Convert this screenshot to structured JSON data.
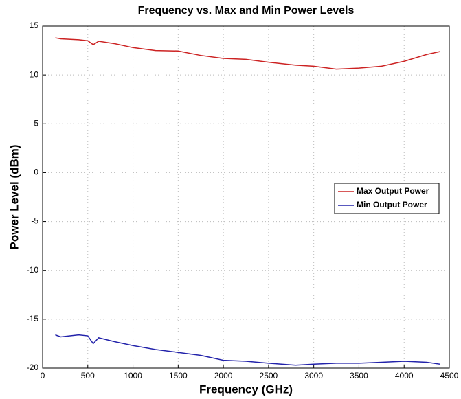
{
  "chart_data": {
    "type": "line",
    "title": "Frequency vs. Max and Min Power Levels",
    "x_label": "Frequency (GHz)",
    "y_label": "Power Level (dBm)",
    "x": [
      140,
      200,
      400,
      500,
      560,
      620,
      800,
      1000,
      1250,
      1500,
      1750,
      2000,
      2250,
      2500,
      2800,
      3000,
      3250,
      3500,
      3750,
      4000,
      4250,
      4400
    ],
    "series": [
      {
        "name": "Max Output Power",
        "color": "#cc2222",
        "values": [
          13.8,
          13.7,
          13.6,
          13.5,
          13.1,
          13.45,
          13.2,
          12.8,
          12.5,
          12.45,
          12.0,
          11.7,
          11.6,
          11.3,
          11.0,
          10.9,
          10.6,
          10.7,
          10.9,
          11.4,
          12.1,
          12.4
        ]
      },
      {
        "name": "Min Output Power",
        "color": "#2222aa",
        "values": [
          -16.6,
          -16.8,
          -16.6,
          -16.7,
          -17.5,
          -16.9,
          -17.3,
          -17.7,
          -18.1,
          -18.4,
          -18.7,
          -19.2,
          -19.3,
          -19.5,
          -19.7,
          -19.6,
          -19.5,
          -19.5,
          -19.4,
          -19.3,
          -19.4,
          -19.6
        ]
      }
    ],
    "xlim": [
      0,
      4500
    ],
    "xticks": [
      0,
      500,
      1000,
      1500,
      2000,
      2500,
      3000,
      3500,
      4000,
      4500
    ],
    "ylim": [
      -20,
      15
    ],
    "yticks": [
      -20,
      -15,
      -10,
      -5,
      0,
      5,
      10,
      15
    ],
    "grid": true,
    "legend": "right"
  }
}
